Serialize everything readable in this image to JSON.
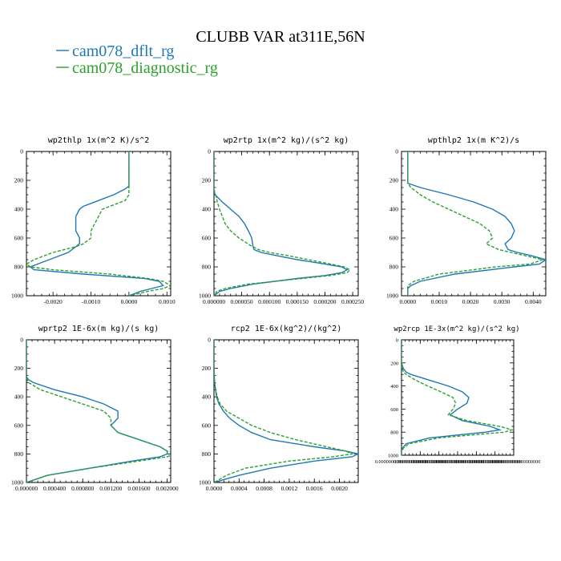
{
  "title": "CLUBB VAR at311E,56N",
  "legend": [
    {
      "label": "cam078_dflt_rg",
      "color": "#1f77b4",
      "dash": false
    },
    {
      "label": "cam078_diagnostic_rg",
      "color": "#2ca02c",
      "dash": true
    }
  ],
  "chart_data": [
    {
      "type": "line",
      "title": "wp2thlp  1x(m^2 K)/s^2",
      "ylim": [
        1000,
        0
      ],
      "yticks": [
        "0",
        "200",
        "400",
        "600",
        "800",
        "1000"
      ],
      "xlim": [
        -0.0027,
        0.0011
      ],
      "xticks": [
        {
          "v": -0.002,
          "t": "-0.0020"
        },
        {
          "v": -0.001,
          "t": "-0.0010"
        },
        {
          "v": 0.0,
          "t": "0.0000"
        },
        {
          "v": 0.001,
          "t": "0.0010"
        }
      ],
      "y": [
        0,
        200,
        240,
        260,
        300,
        340,
        360,
        380,
        400,
        450,
        500,
        550,
        600,
        620,
        640,
        660,
        680,
        700,
        750,
        780,
        800,
        820,
        850,
        880,
        900,
        930,
        950,
        970,
        1000
      ],
      "series": [
        {
          "name": "cam078_dflt_rg",
          "values": [
            0.0,
            0.0,
            0.0,
            -0.0001,
            -0.0004,
            -0.0008,
            -0.001,
            -0.0012,
            -0.0013,
            -0.0014,
            -0.0014,
            -0.0014,
            -0.0013,
            -0.0013,
            -0.0013,
            -0.0014,
            -0.0015,
            -0.0016,
            -0.0021,
            -0.0024,
            -0.0026,
            -0.0025,
            -0.0012,
            0.0004,
            0.0008,
            0.0009,
            0.0006,
            0.0003,
            0.0
          ]
        },
        {
          "name": "cam078_diagnostic_rg",
          "values": [
            0.0,
            0.0,
            0.0,
            0.0,
            0.0,
            -0.0001,
            -0.0003,
            -0.0005,
            -0.0007,
            -0.0008,
            -0.0009,
            -0.001,
            -0.001,
            -0.0011,
            -0.0012,
            -0.0014,
            -0.0017,
            -0.002,
            -0.0025,
            -0.0027,
            -0.0026,
            -0.002,
            -0.0005,
            0.0005,
            0.0009,
            0.0011,
            0.0009,
            0.0005,
            0.0
          ]
        }
      ]
    },
    {
      "type": "line",
      "title": "wp2rtp  1x(m^2 kg)/(s^2 kg)",
      "ylim": [
        1000,
        0
      ],
      "yticks": [
        "0",
        "200",
        "400",
        "600",
        "800",
        "1000"
      ],
      "xlim": [
        0.0,
        0.00026
      ],
      "xticks": [
        {
          "v": 0.0,
          "t": "0.000000"
        },
        {
          "v": 5e-05,
          "t": "0.000050"
        },
        {
          "v": 0.0001,
          "t": "0.000100"
        },
        {
          "v": 0.00015,
          "t": "0.000150"
        },
        {
          "v": 0.0002,
          "t": "0.000200"
        },
        {
          "v": 0.00025,
          "t": "0.000250"
        }
      ],
      "y": [
        0,
        200,
        250,
        280,
        300,
        350,
        400,
        450,
        500,
        550,
        600,
        650,
        680,
        700,
        720,
        750,
        780,
        800,
        820,
        840,
        860,
        880,
        900,
        920,
        950,
        970,
        1000
      ],
      "series": [
        {
          "name": "cam078_dflt_rg",
          "values": [
            0.0,
            0.0,
            0.0,
            0.0,
            2e-06,
            1.5e-05,
            3e-05,
            4.5e-05,
            5.5e-05,
            6.2e-05,
            6.8e-05,
            7e-05,
            7.2e-05,
            8.5e-05,
            0.00011,
            0.00015,
            0.0002,
            0.00023,
            0.00024,
            0.00023,
            0.0002,
            0.00015,
            0.00011,
            7e-05,
            3e-05,
            1e-05,
            0.0
          ]
        },
        {
          "name": "cam078_diagnostic_rg",
          "values": [
            0.0,
            0.0,
            0.0,
            1e-06,
            3e-06,
            6e-06,
            1e-05,
            1.5e-05,
            2e-05,
            3e-05,
            4.5e-05,
            6.5e-05,
            8e-05,
            0.0001,
            0.00013,
            0.00017,
            0.00021,
            0.000235,
            0.000245,
            0.00024,
            0.00021,
            0.00016,
            0.00011,
            6e-05,
            2e-05,
            5e-06,
            0.0
          ]
        }
      ]
    },
    {
      "type": "line",
      "title": "wpthlp2  1x(m K^2)/s",
      "ylim": [
        1000,
        0
      ],
      "yticks": [
        "0",
        "200",
        "400",
        "600",
        "800",
        "1000"
      ],
      "xlim": [
        -0.0002,
        0.0044
      ],
      "xticks": [
        {
          "v": 0.0,
          "t": "0.0000"
        },
        {
          "v": 0.001,
          "t": "0.0010"
        },
        {
          "v": 0.002,
          "t": "0.0020"
        },
        {
          "v": 0.003,
          "t": "0.0030"
        },
        {
          "v": 0.004,
          "t": "0.0040"
        }
      ],
      "y": [
        0,
        200,
        220,
        250,
        300,
        350,
        400,
        450,
        500,
        550,
        600,
        640,
        680,
        700,
        720,
        750,
        780,
        800,
        850,
        900,
        930,
        950,
        1000
      ],
      "series": [
        {
          "name": "cam078_dflt_rg",
          "values": [
            0.0,
            0.0,
            0.0,
            0.0004,
            0.0013,
            0.0021,
            0.0027,
            0.0031,
            0.0033,
            0.0034,
            0.0033,
            0.0031,
            0.0032,
            0.0035,
            0.0039,
            0.0044,
            0.0042,
            0.0034,
            0.0015,
            0.0004,
            0.0001,
            0.0,
            0.0
          ]
        },
        {
          "name": "cam078_diagnostic_rg",
          "values": [
            0.0,
            0.0,
            0.0,
            0.0001,
            0.0004,
            0.0008,
            0.0013,
            0.0018,
            0.0023,
            0.0026,
            0.0027,
            0.0025,
            0.0029,
            0.0033,
            0.0037,
            0.0043,
            0.0039,
            0.0028,
            0.001,
            0.0002,
            0.0,
            0.0,
            0.0
          ]
        }
      ]
    },
    {
      "type": "line",
      "title": "wprtp2  1E-6x(m kg)/(s kg)",
      "ylim": [
        1000,
        0
      ],
      "yticks": [
        "0",
        "200",
        "400",
        "600",
        "800",
        "1000"
      ],
      "xlim": [
        0.0,
        0.00205
      ],
      "xticks": [
        {
          "v": 0.0,
          "t": "0.000000"
        },
        {
          "v": 0.0004,
          "t": "0.000400"
        },
        {
          "v": 0.0008,
          "t": "0.000800"
        },
        {
          "v": 0.0012,
          "t": "0.001200"
        },
        {
          "v": 0.0016,
          "t": "0.001600"
        },
        {
          "v": 0.002,
          "t": "0.002000"
        }
      ],
      "y": [
        0,
        200,
        260,
        280,
        300,
        350,
        400,
        450,
        500,
        550,
        600,
        650,
        700,
        750,
        780,
        800,
        820,
        850,
        900,
        950,
        1000
      ],
      "series": [
        {
          "name": "cam078_dflt_rg",
          "values": [
            0.0,
            0.0,
            0.0,
            3e-05,
            0.0001,
            0.0004,
            0.0008,
            0.0011,
            0.0013,
            0.0013,
            0.0012,
            0.0013,
            0.0016,
            0.0019,
            0.002,
            0.002,
            0.0019,
            0.0015,
            0.0009,
            0.0003,
            0.0
          ]
        },
        {
          "name": "cam078_diagnostic_rg",
          "values": [
            0.0,
            0.0,
            0.0,
            1e-05,
            3e-05,
            0.0002,
            0.0005,
            0.0008,
            0.0011,
            0.0012,
            0.0012,
            0.0013,
            0.0016,
            0.0019,
            0.002,
            0.0021,
            0.002,
            0.0016,
            0.0009,
            0.0003,
            0.0
          ]
        }
      ]
    },
    {
      "type": "line",
      "title": "rcp2  1E-6x(kg^2)/(kg^2)",
      "ylim": [
        1000,
        0
      ],
      "yticks": [
        "0",
        "200",
        "400",
        "600",
        "800",
        "1000"
      ],
      "xlim": [
        0.0,
        0.0023
      ],
      "xticks": [
        {
          "v": 0.0,
          "t": "0.0000"
        },
        {
          "v": 0.0004,
          "t": "0.0004"
        },
        {
          "v": 0.0008,
          "t": "0.0008"
        },
        {
          "v": 0.0012,
          "t": "0.0012"
        },
        {
          "v": 0.0016,
          "t": "0.0016"
        },
        {
          "v": 0.002,
          "t": "0.0020"
        }
      ],
      "y": [
        0,
        200,
        300,
        400,
        450,
        500,
        550,
        600,
        650,
        700,
        750,
        780,
        800,
        820,
        850,
        900,
        950,
        1000
      ],
      "series": [
        {
          "name": "cam078_dflt_rg",
          "values": [
            0.0,
            0.0,
            1e-05,
            4e-05,
            8e-05,
            0.00015,
            0.00025,
            0.0004,
            0.0006,
            0.0009,
            0.0016,
            0.0021,
            0.0023,
            0.0022,
            0.0016,
            0.0009,
            0.0004,
            0.0
          ]
        },
        {
          "name": "cam078_diagnostic_rg",
          "values": [
            0.0,
            0.0,
            1e-05,
            5e-05,
            0.0001,
            0.0002,
            0.0004,
            0.0006,
            0.0009,
            0.0013,
            0.0018,
            0.0021,
            0.0022,
            0.0019,
            0.0012,
            0.0005,
            0.0002,
            0.0
          ]
        }
      ]
    },
    {
      "type": "line",
      "title": "wp2rcp  1E-3x(m^2 kg)/(s^2 kg)",
      "ylim": [
        1000,
        0
      ],
      "yticks": [
        "0",
        "200",
        "400",
        "600",
        "800",
        "1000"
      ],
      "xlim": [
        0.0,
        0.0012
      ],
      "xticks": [
        {
          "v": 0.0,
          "t": "0.00000000000000000000"
        },
        {
          "v": 0.0002,
          "t": "0.00000000000000000000"
        },
        {
          "v": 0.0004,
          "t": "0.00000000000000000000"
        },
        {
          "v": 0.0006,
          "t": "0.00000000000000000000"
        },
        {
          "v": 0.0008,
          "t": "0.00000000000000000000"
        },
        {
          "v": 0.001,
          "t": "0.00000000000000000000"
        },
        {
          "v": 0.0012,
          "t": "0.00000000000000000000"
        }
      ],
      "y": [
        0,
        200,
        250,
        280,
        300,
        350,
        400,
        450,
        500,
        550,
        600,
        650,
        700,
        750,
        780,
        800,
        850,
        900,
        950,
        1000
      ],
      "series": [
        {
          "name": "cam078_dflt_rg",
          "values": [
            0.0,
            0.0,
            2e-05,
            5e-05,
            0.0001,
            0.0003,
            0.0005,
            0.00065,
            0.00072,
            0.0007,
            0.0006,
            0.00052,
            0.00065,
            0.00095,
            0.00105,
            0.0009,
            0.0003,
            5e-05,
            0.0,
            0.0
          ]
        },
        {
          "name": "cam078_diagnostic_rg",
          "values": [
            0.0,
            0.0,
            1e-05,
            2e-05,
            5e-05,
            0.00015,
            0.00028,
            0.00042,
            0.00055,
            0.00058,
            0.00055,
            0.0005,
            0.0007,
            0.00105,
            0.00118,
            0.0011,
            0.0004,
            8e-05,
            0.0,
            0.0
          ]
        }
      ]
    }
  ]
}
